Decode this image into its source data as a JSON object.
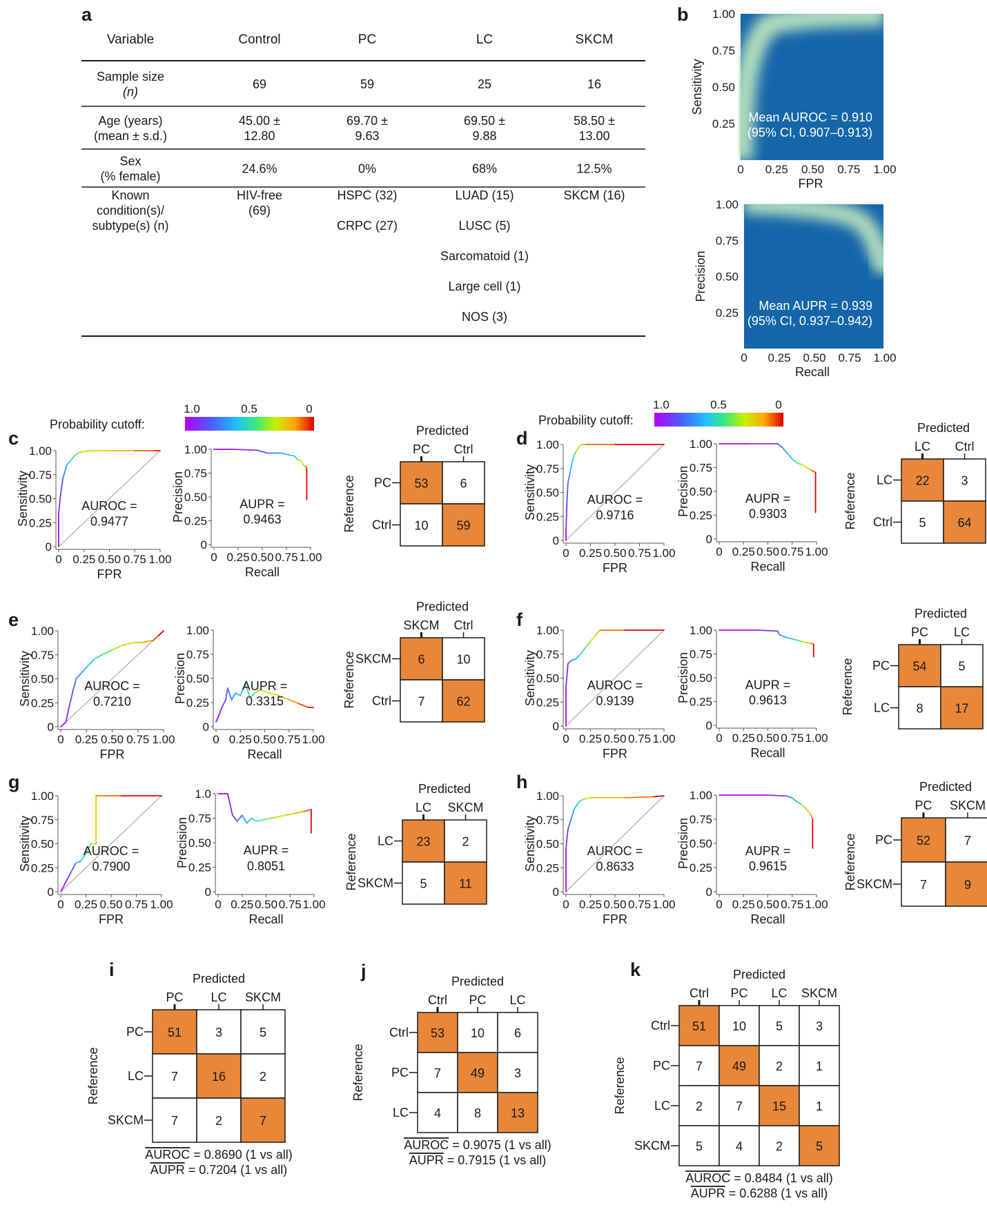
{
  "panel_letters": [
    "a",
    "b",
    "c",
    "d",
    "e",
    "f",
    "g",
    "h",
    "i",
    "j",
    "k"
  ],
  "table": {
    "headers": [
      "Variable",
      "Control",
      "PC",
      "LC",
      "SKCM"
    ],
    "rows": [
      {
        "label": [
          "Sample size",
          "(n)"
        ],
        "cells": [
          [
            "69"
          ],
          [
            "59"
          ],
          [
            "25"
          ],
          [
            "16"
          ]
        ]
      },
      {
        "label": [
          "Age (years)",
          "(mean ± s.d.)"
        ],
        "cells": [
          [
            "45.00 ±",
            "12.80"
          ],
          [
            "69.70 ±",
            "9.63"
          ],
          [
            "69.50 ±",
            "9.88"
          ],
          [
            "58.50 ±",
            "13.00"
          ]
        ]
      },
      {
        "label": [
          "Sex",
          "(% female)"
        ],
        "cells": [
          [
            "24.6%"
          ],
          [
            "0%"
          ],
          [
            "68%"
          ],
          [
            "12.5%"
          ]
        ]
      },
      {
        "label": [
          "Known",
          "condition(s)/",
          "subtype(s) (n)"
        ],
        "cells": [
          [
            "HIV-free",
            "(69)"
          ],
          [
            "HSPC (32)",
            "",
            "CRPC (27)"
          ],
          [
            "LUAD (15)",
            "",
            "LUSC (5)",
            "",
            "Sarcomatoid (1)",
            "",
            "Large cell (1)",
            "",
            "NOS (3)"
          ],
          [
            "SKCM (16)"
          ]
        ]
      }
    ]
  },
  "probability_cutoff": {
    "label": "Probability cutoff:",
    "ticks": [
      "1.0",
      "0.5",
      "0"
    ]
  },
  "colors": {
    "orange": "#e8873a",
    "heatmap_bg": "#1565a9",
    "heatmap_band": "#b9e4bf",
    "diagonal": "#b0b0b0"
  },
  "confusion_labels": {
    "predicted": "Predicted",
    "reference": "Reference"
  },
  "chart_data": [
    {
      "panel": "b",
      "type": "heatmap",
      "xlabel": "FPR",
      "ylabel": "Sensitivity",
      "xticks": [
        "0",
        "0.25",
        "0.50",
        "0.75",
        "1.00"
      ],
      "yticks": [
        "0.25",
        "0.50",
        "0.75",
        "1.00"
      ],
      "xlim": [
        0,
        1
      ],
      "ylim": [
        0,
        1
      ],
      "annotation": [
        "Mean AUROC = 0.910",
        "(95% CI, 0.907–0.913)"
      ],
      "band": "roc"
    },
    {
      "panel": "b",
      "type": "heatmap",
      "xlabel": "Recall",
      "ylabel": "Precision",
      "xticks": [
        "0",
        "0.25",
        "0.50",
        "0.75",
        "1.00"
      ],
      "yticks": [
        "0.25",
        "0.50",
        "0.75",
        "1.00"
      ],
      "xlim": [
        0,
        1
      ],
      "ylim": [
        0,
        1
      ],
      "annotation": [
        "Mean AUPR = 0.939",
        "(95% CI, 0.937–0.942)"
      ],
      "band": "pr"
    },
    {
      "panel": "c",
      "type": "line",
      "kind": "roc",
      "xlabel": "FPR",
      "ylabel": "Sensitivity",
      "metric": [
        "AUROC =",
        "0.9477"
      ],
      "x": [
        0,
        0,
        0.02,
        0.04,
        0.06,
        0.08,
        0.12,
        0.16,
        0.2,
        0.3,
        0.5,
        0.75,
        0.95,
        1
      ],
      "y": [
        0,
        0.35,
        0.55,
        0.7,
        0.78,
        0.85,
        0.9,
        0.95,
        0.98,
        1,
        1,
        1,
        1,
        1
      ]
    },
    {
      "panel": "c",
      "type": "line",
      "kind": "pr",
      "xlabel": "Recall",
      "ylabel": "Precision",
      "metric": [
        "AUPR =",
        "0.9463"
      ],
      "x": [
        0,
        0.2,
        0.45,
        0.55,
        0.7,
        0.78,
        0.83,
        0.87,
        0.9,
        0.93,
        0.95,
        0.96,
        0.96
      ],
      "y": [
        1,
        1,
        0.99,
        0.96,
        0.96,
        0.94,
        0.93,
        0.89,
        0.88,
        0.83,
        0.82,
        0.8,
        0.47
      ]
    },
    {
      "panel": "c",
      "type": "table",
      "labels": [
        "PC",
        "Ctrl"
      ],
      "matrix": [
        [
          53,
          6
        ],
        [
          10,
          59
        ]
      ]
    },
    {
      "panel": "d",
      "type": "line",
      "kind": "roc",
      "xlabel": "FPR",
      "ylabel": "Sensitivity",
      "metric": [
        "AUROC =",
        "0.9716"
      ],
      "x": [
        0,
        0,
        0.01,
        0.02,
        0.04,
        0.06,
        0.08,
        0.1,
        0.13,
        0.16,
        0.2,
        0.5,
        1
      ],
      "y": [
        0,
        0.1,
        0.4,
        0.6,
        0.7,
        0.8,
        0.88,
        0.92,
        0.97,
        1,
        1,
        1,
        1
      ]
    },
    {
      "panel": "d",
      "type": "line",
      "kind": "pr",
      "xlabel": "Recall",
      "ylabel": "Precision",
      "metric": [
        "AUPR =",
        "0.9303"
      ],
      "x": [
        0,
        0.3,
        0.6,
        0.65,
        0.7,
        0.75,
        0.8,
        0.85,
        0.9,
        0.95,
        0.99,
        0.99
      ],
      "y": [
        1,
        1,
        1,
        0.96,
        0.9,
        0.84,
        0.8,
        0.78,
        0.75,
        0.72,
        0.7,
        0.28
      ]
    },
    {
      "panel": "d",
      "type": "table",
      "labels": [
        "LC",
        "Ctrl"
      ],
      "matrix": [
        [
          22,
          3
        ],
        [
          5,
          64
        ]
      ]
    },
    {
      "panel": "e",
      "type": "line",
      "kind": "roc",
      "xlabel": "FPR",
      "ylabel": "Sensitivity",
      "metric": [
        "AUROC =",
        "0.7210"
      ],
      "x": [
        0,
        0.05,
        0.08,
        0.12,
        0.15,
        0.2,
        0.25,
        0.32,
        0.4,
        0.5,
        0.6,
        0.72,
        0.8,
        0.9,
        0.95,
        1
      ],
      "y": [
        0,
        0.05,
        0.2,
        0.38,
        0.5,
        0.56,
        0.62,
        0.7,
        0.75,
        0.8,
        0.85,
        0.88,
        0.88,
        0.9,
        0.95,
        1
      ]
    },
    {
      "panel": "e",
      "type": "line",
      "kind": "pr",
      "xlabel": "Recall",
      "ylabel": "Precision",
      "metric": [
        "AUPR =",
        "0.3315"
      ],
      "x": [
        0,
        0.03,
        0.06,
        0.1,
        0.12,
        0.16,
        0.2,
        0.25,
        0.3,
        0.35,
        0.4,
        0.45,
        0.55,
        0.65,
        0.75,
        0.85,
        0.95,
        1
      ],
      "y": [
        0.05,
        0.12,
        0.2,
        0.28,
        0.4,
        0.28,
        0.35,
        0.32,
        0.45,
        0.3,
        0.35,
        0.38,
        0.35,
        0.32,
        0.28,
        0.24,
        0.2,
        0.2
      ]
    },
    {
      "panel": "e",
      "type": "table",
      "labels": [
        "SKCM",
        "Ctrl"
      ],
      "matrix": [
        [
          6,
          10
        ],
        [
          7,
          62
        ]
      ]
    },
    {
      "panel": "f",
      "type": "line",
      "kind": "roc",
      "xlabel": "FPR",
      "ylabel": "Sensitivity",
      "metric": [
        "AUROC =",
        "0.9139"
      ],
      "x": [
        0,
        0,
        0.02,
        0.05,
        0.1,
        0.15,
        0.2,
        0.25,
        0.3,
        0.35,
        0.6,
        1
      ],
      "y": [
        0,
        0.4,
        0.65,
        0.68,
        0.7,
        0.75,
        0.82,
        0.88,
        0.95,
        1,
        1,
        1
      ]
    },
    {
      "panel": "f",
      "type": "line",
      "kind": "pr",
      "xlabel": "Recall",
      "ylabel": "Precision",
      "metric": [
        "AUPR =",
        "0.9613"
      ],
      "x": [
        0,
        0.4,
        0.6,
        0.62,
        0.7,
        0.78,
        0.85,
        0.9,
        0.95,
        0.97,
        0.97
      ],
      "y": [
        1,
        1,
        0.99,
        0.95,
        0.92,
        0.9,
        0.88,
        0.87,
        0.86,
        0.85,
        0.72
      ]
    },
    {
      "panel": "f",
      "type": "table",
      "labels": [
        "PC",
        "LC"
      ],
      "matrix": [
        [
          54,
          5
        ],
        [
          8,
          17
        ]
      ]
    },
    {
      "panel": "g",
      "type": "line",
      "kind": "roc",
      "xlabel": "FPR",
      "ylabel": "Sensitivity",
      "metric": [
        "AUROC =",
        "0.7900"
      ],
      "x": [
        0,
        0.05,
        0.1,
        0.15,
        0.2,
        0.25,
        0.3,
        0.35,
        0.35,
        0.6,
        1
      ],
      "y": [
        0,
        0.1,
        0.2,
        0.3,
        0.32,
        0.4,
        0.5,
        0.5,
        1,
        1,
        1
      ]
    },
    {
      "panel": "g",
      "type": "line",
      "kind": "pr",
      "xlabel": "Recall",
      "ylabel": "Precision",
      "metric": [
        "AUPR =",
        "0.8051"
      ],
      "x": [
        0,
        0.1,
        0.15,
        0.2,
        0.25,
        0.3,
        0.35,
        0.4,
        0.5,
        0.6,
        0.7,
        0.8,
        0.9,
        0.97,
        0.97
      ],
      "y": [
        1,
        1,
        0.78,
        0.72,
        0.78,
        0.7,
        0.75,
        0.72,
        0.74,
        0.76,
        0.78,
        0.8,
        0.82,
        0.84,
        0.6
      ]
    },
    {
      "panel": "g",
      "type": "table",
      "labels": [
        "LC",
        "SKCM"
      ],
      "matrix": [
        [
          23,
          2
        ],
        [
          5,
          11
        ]
      ]
    },
    {
      "panel": "h",
      "type": "line",
      "kind": "roc",
      "xlabel": "FPR",
      "ylabel": "Sensitivity",
      "metric": [
        "AUROC =",
        "0.8633"
      ],
      "x": [
        0,
        0,
        0.02,
        0.05,
        0.08,
        0.12,
        0.15,
        0.2,
        0.25,
        0.6,
        0.9,
        1
      ],
      "y": [
        0,
        0.45,
        0.65,
        0.75,
        0.85,
        0.92,
        0.95,
        0.97,
        0.98,
        0.98,
        0.99,
        1
      ]
    },
    {
      "panel": "h",
      "type": "line",
      "kind": "pr",
      "xlabel": "Recall",
      "ylabel": "Precision",
      "metric": [
        "AUPR =",
        "0.9615"
      ],
      "x": [
        0,
        0.5,
        0.7,
        0.75,
        0.8,
        0.85,
        0.9,
        0.94,
        0.96,
        0.96
      ],
      "y": [
        1,
        1,
        0.99,
        0.97,
        0.93,
        0.9,
        0.85,
        0.8,
        0.75,
        0.45
      ]
    },
    {
      "panel": "h",
      "type": "table",
      "labels": [
        "PC",
        "SKCM"
      ],
      "matrix": [
        [
          52,
          7
        ],
        [
          7,
          9
        ]
      ]
    },
    {
      "panel": "i",
      "type": "table",
      "labels": [
        "PC",
        "LC",
        "SKCM"
      ],
      "matrix": [
        [
          51,
          3,
          5
        ],
        [
          7,
          16,
          2
        ],
        [
          7,
          2,
          7
        ]
      ],
      "footer": [
        "AUROC",
        " = 0.8690 (1 vs all)",
        "AUPR",
        " = 0.7204 (1 vs all)"
      ]
    },
    {
      "panel": "j",
      "type": "table",
      "labels": [
        "Ctrl",
        "PC",
        "LC"
      ],
      "matrix": [
        [
          53,
          10,
          6
        ],
        [
          7,
          49,
          3
        ],
        [
          4,
          8,
          13
        ]
      ],
      "footer": [
        "AUROC",
        " = 0.9075 (1 vs all)",
        "AUPR",
        " = 0.7915 (1 vs all)"
      ]
    },
    {
      "panel": "k",
      "type": "table",
      "labels": [
        "Ctrl",
        "PC",
        "LC",
        "SKCM"
      ],
      "matrix": [
        [
          51,
          10,
          5,
          3
        ],
        [
          7,
          49,
          2,
          1
        ],
        [
          2,
          7,
          15,
          1
        ],
        [
          5,
          4,
          2,
          5
        ]
      ],
      "footer": [
        "AUROC",
        " = 0.8484 (1 vs all)",
        "AUPR",
        " = 0.6288 (1 vs all)"
      ]
    }
  ]
}
